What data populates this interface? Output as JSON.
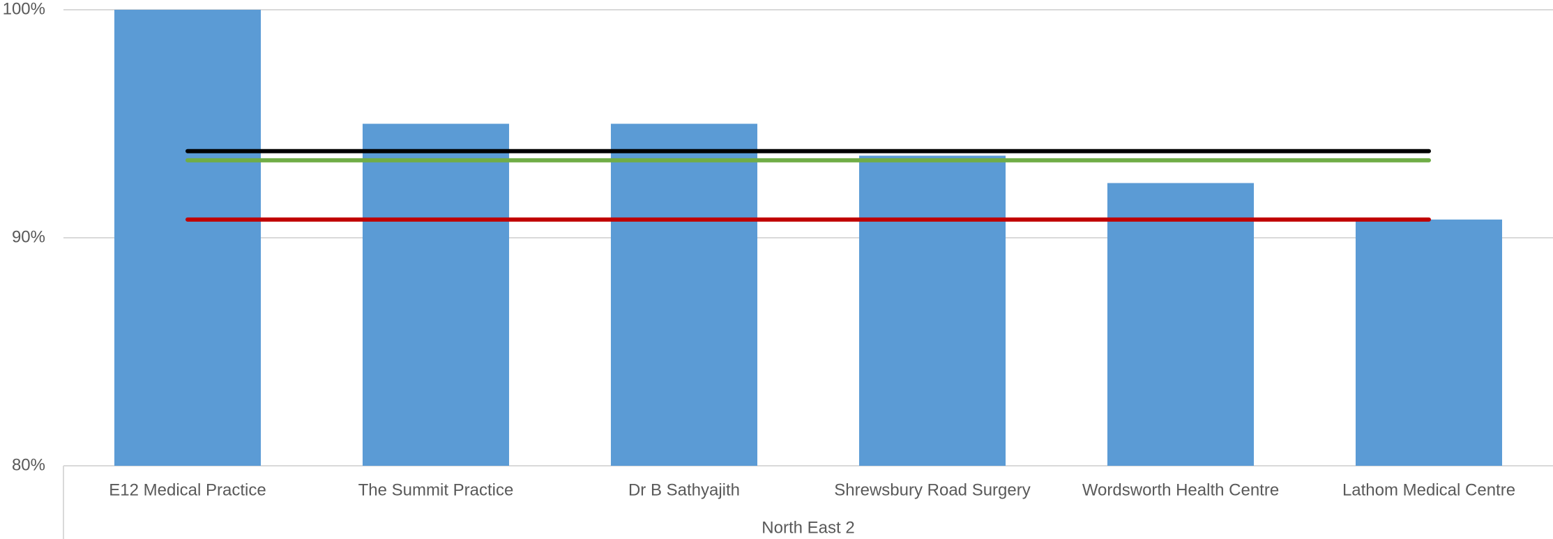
{
  "chart_data": {
    "type": "bar",
    "categories": [
      "E12 Medical Practice",
      "The Summit Practice",
      "Dr B Sathyajith",
      "Shrewsbury Road Surgery",
      "Wordsworth Health Centre",
      "Lathom Medical Centre"
    ],
    "group_label": "North East 2",
    "series": [
      {
        "type": "bar",
        "color": "#5b9bd5",
        "values": [
          100,
          95,
          95,
          93.6,
          92.4,
          90.8
        ]
      },
      {
        "type": "line",
        "color": "#000000",
        "values": [
          93.8,
          93.8,
          93.8,
          93.8,
          93.8,
          93.8
        ]
      },
      {
        "type": "line",
        "color": "#70ad47",
        "values": [
          93.4,
          93.4,
          93.4,
          93.4,
          93.4,
          93.4
        ]
      },
      {
        "type": "line",
        "color": "#c00000",
        "values": [
          90.8,
          90.8,
          90.8,
          90.8,
          90.8,
          90.8
        ]
      }
    ],
    "ylim": [
      80,
      100
    ],
    "yticks": [
      {
        "value": 80,
        "label": "80%"
      },
      {
        "value": 90,
        "label": "90%"
      },
      {
        "value": 100,
        "label": "100%"
      }
    ],
    "grid": true
  }
}
